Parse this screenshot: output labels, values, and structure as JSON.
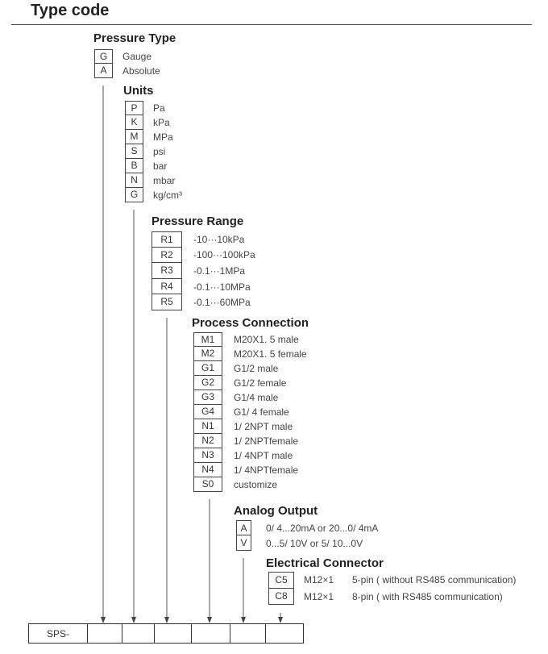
{
  "title": "Type code",
  "sections": [
    {
      "heading": "Pressure Type",
      "items": [
        {
          "code": "G",
          "label": "Gauge"
        },
        {
          "code": "A",
          "label": "Absolute"
        }
      ]
    },
    {
      "heading": "Units",
      "items": [
        {
          "code": "P",
          "label": "Pa"
        },
        {
          "code": "K",
          "label": "kPa"
        },
        {
          "code": "M",
          "label": "MPa"
        },
        {
          "code": "S",
          "label": "psi"
        },
        {
          "code": "B",
          "label": "bar"
        },
        {
          "code": "N",
          "label": "mbar"
        },
        {
          "code": "G",
          "label": "kg/cm³"
        }
      ]
    },
    {
      "heading": "Pressure Range",
      "items": [
        {
          "code": "R1",
          "label": "-10···10kPa"
        },
        {
          "code": "R2",
          "label": "-100···100kPa"
        },
        {
          "code": "R3",
          "label": "-0.1···1MPa"
        },
        {
          "code": "R4",
          "label": "-0.1···10MPa"
        },
        {
          "code": "R5",
          "label": "-0.1···60MPa"
        }
      ]
    },
    {
      "heading": "Process Connection",
      "items": [
        {
          "code": "M1",
          "label": "M20X1. 5  male"
        },
        {
          "code": "M2",
          "label": "M20X1. 5  female"
        },
        {
          "code": "G1",
          "label": "G1/2  male"
        },
        {
          "code": "G2",
          "label": "G1/2  female"
        },
        {
          "code": "G3",
          "label": "G1/4  male"
        },
        {
          "code": "G4",
          "label": "G1/ 4  female"
        },
        {
          "code": "N1",
          "label": "1/ 2NPT  male"
        },
        {
          "code": "N2",
          "label": "1/ 2NPTfemale"
        },
        {
          "code": "N3",
          "label": "1/ 4NPT  male"
        },
        {
          "code": "N4",
          "label": "1/ 4NPTfemale"
        },
        {
          "code": "S0",
          "label": "customize"
        }
      ]
    },
    {
      "heading": "Analog Output",
      "items": [
        {
          "code": "A",
          "label": "0/ 4...20mA  or 20...0/ 4mA"
        },
        {
          "code": "V",
          "label": "0...5/ 10V or  5/ 10...0V"
        }
      ]
    },
    {
      "heading": "Electrical Connector",
      "items": [
        {
          "code": "C5",
          "label": "M12×1",
          "detail": "5-pin ( without RS485 communication)"
        },
        {
          "code": "C8",
          "label": "M12×1",
          "detail": "8-pin ( with RS485 communication)"
        }
      ]
    }
  ],
  "code_bar": {
    "prefix": "SPS-",
    "slots": [
      "",
      "",
      "",
      "",
      "",
      ""
    ]
  }
}
